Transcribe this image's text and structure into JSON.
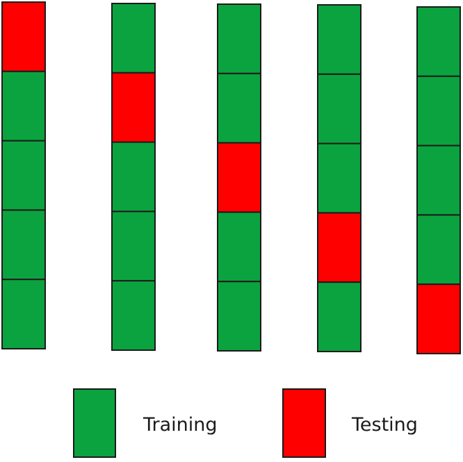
{
  "colors": {
    "training": "#0BA33F",
    "testing": "#FF0000",
    "border": "#1a1a1a"
  },
  "folds": [
    {
      "testing_index": 0
    },
    {
      "testing_index": 1
    },
    {
      "testing_index": 2
    },
    {
      "testing_index": 3
    },
    {
      "testing_index": 4
    }
  ],
  "segments_per_fold": 5,
  "legend": {
    "training": {
      "label": "Training"
    },
    "testing": {
      "label": "Testing"
    }
  }
}
